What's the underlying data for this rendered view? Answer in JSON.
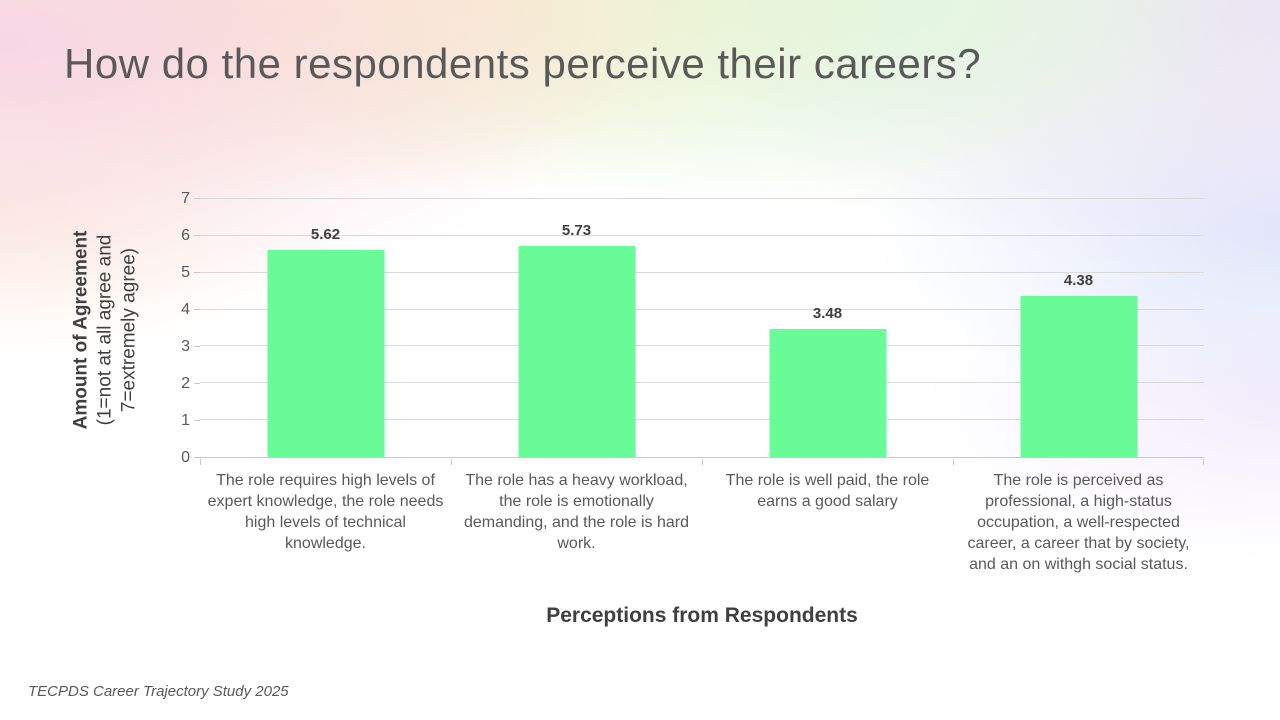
{
  "slide": {
    "title": "How do the respondents perceive their careers?",
    "footer": "TECPDS Career Trajectory Study 2025"
  },
  "chart_data": {
    "type": "bar",
    "title": "",
    "categories": [
      "The role requires high levels of expert knowledge, the role needs high levels of technical knowledge.",
      "The role has a heavy workload, the role is emotionally demanding, and the role is hard work.",
      "The role is well paid, the role earns a good salary",
      "The role is perceived as professional, a high-status occupation, a well-respected career, a career that by society, and an on withgh social status."
    ],
    "values": [
      5.62,
      5.73,
      3.48,
      4.38
    ],
    "value_labels": [
      "5.62",
      "5.73",
      "3.48",
      "4.38"
    ],
    "xlabel": "Perceptions from Respondents",
    "ylabel": "Amount of Agreement",
    "ylabel_sub": "(1=not at all agree and 7=extremely agree)",
    "ylim": [
      0,
      7
    ],
    "yticks": [
      0,
      1,
      2,
      3,
      4,
      5,
      6,
      7
    ],
    "grid": true,
    "legend": "none",
    "bar_color": "#69fb98",
    "gridline_color": "#d9d9d9",
    "axis_color": "#c9c9c9"
  }
}
